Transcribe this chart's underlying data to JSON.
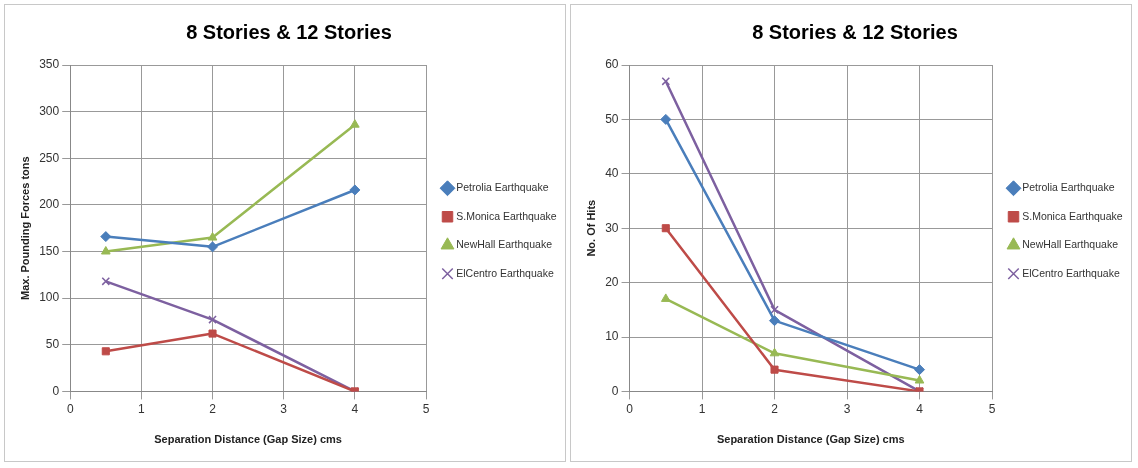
{
  "chart_data": [
    {
      "type": "line",
      "title": "8 Stories & 12 Stories",
      "xlabel": "Separation Distance (Gap Size) cms",
      "ylabel": "Max. Pounding Forces tons",
      "x": [
        0.5,
        2,
        4
      ],
      "xlim": [
        0,
        5
      ],
      "xticks": [
        0,
        1,
        2,
        3,
        4,
        5
      ],
      "ylim": [
        0,
        350
      ],
      "yticks": [
        0,
        50,
        100,
        150,
        200,
        250,
        300,
        350
      ],
      "grid": true,
      "legend": "right",
      "series": [
        {
          "name": "Petrolia Earthquake",
          "color": "#4a7ebb",
          "marker": "diamond",
          "values": [
            166,
            155,
            216
          ]
        },
        {
          "name": "S.Monica Earthquake",
          "color": "#be4b48",
          "marker": "square",
          "values": [
            43,
            62,
            0
          ]
        },
        {
          "name": "NewHall Earthquake",
          "color": "#98b954",
          "marker": "triangle",
          "values": [
            150,
            165,
            286
          ]
        },
        {
          "name": "ElCentro Earthquake",
          "color": "#7d60a0",
          "marker": "cross",
          "values": [
            118,
            77,
            0
          ]
        }
      ]
    },
    {
      "type": "line",
      "title": "8 Stories & 12 Stories",
      "xlabel": "Separation Distance (Gap Size) cms",
      "ylabel": "No. Of Hits",
      "x": [
        0.5,
        2,
        4
      ],
      "xlim": [
        0,
        5
      ],
      "xticks": [
        0,
        1,
        2,
        3,
        4,
        5
      ],
      "ylim": [
        0,
        60
      ],
      "yticks": [
        0,
        10,
        20,
        30,
        40,
        50,
        60
      ],
      "grid": true,
      "legend": "right",
      "series": [
        {
          "name": "Petrolia Earthquake",
          "color": "#4a7ebb",
          "marker": "diamond",
          "values": [
            50,
            13,
            4
          ]
        },
        {
          "name": "S.Monica Earthquake",
          "color": "#be4b48",
          "marker": "square",
          "values": [
            30,
            4,
            0
          ]
        },
        {
          "name": "NewHall Earthquake",
          "color": "#98b954",
          "marker": "triangle",
          "values": [
            17,
            7,
            2
          ]
        },
        {
          "name": "ElCentro Earthquake",
          "color": "#7d60a0",
          "marker": "cross",
          "values": [
            57,
            15,
            0
          ]
        }
      ]
    }
  ]
}
